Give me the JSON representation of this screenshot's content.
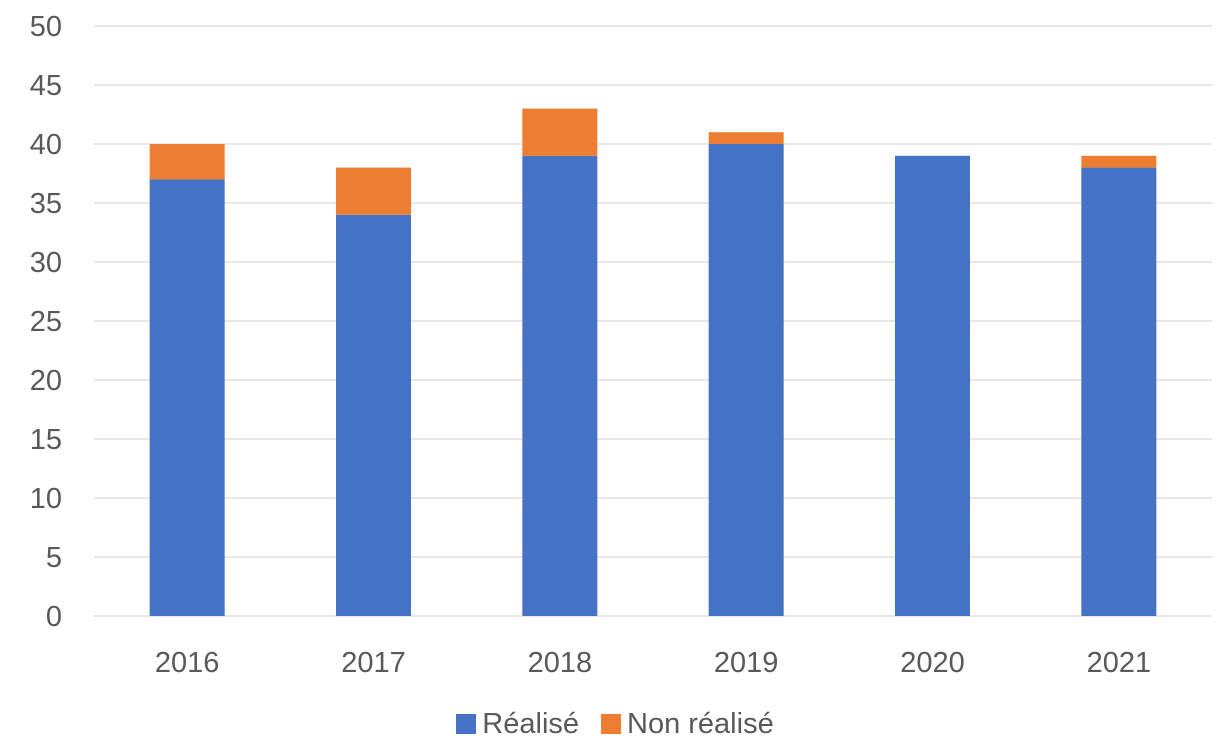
{
  "chart_data": {
    "type": "bar",
    "stacked": true,
    "categories": [
      "2016",
      "2017",
      "2018",
      "2019",
      "2020",
      "2021"
    ],
    "series": [
      {
        "name": "Réalisé",
        "values": [
          37,
          34,
          39,
          40,
          39,
          38
        ],
        "color": "#4472C4"
      },
      {
        "name": "Non réalisé",
        "values": [
          3,
          4,
          4,
          1,
          0,
          1
        ],
        "color": "#ED7D31"
      }
    ],
    "ylim": [
      0,
      50
    ],
    "yticks": [
      0,
      5,
      10,
      15,
      20,
      25,
      30,
      35,
      40,
      45,
      50
    ],
    "grid": true,
    "legend_position": "bottom",
    "title": "",
    "xlabel": "",
    "ylabel": ""
  },
  "colors": {
    "gridline": "#D9D9D9",
    "axis_text": "#595959"
  }
}
